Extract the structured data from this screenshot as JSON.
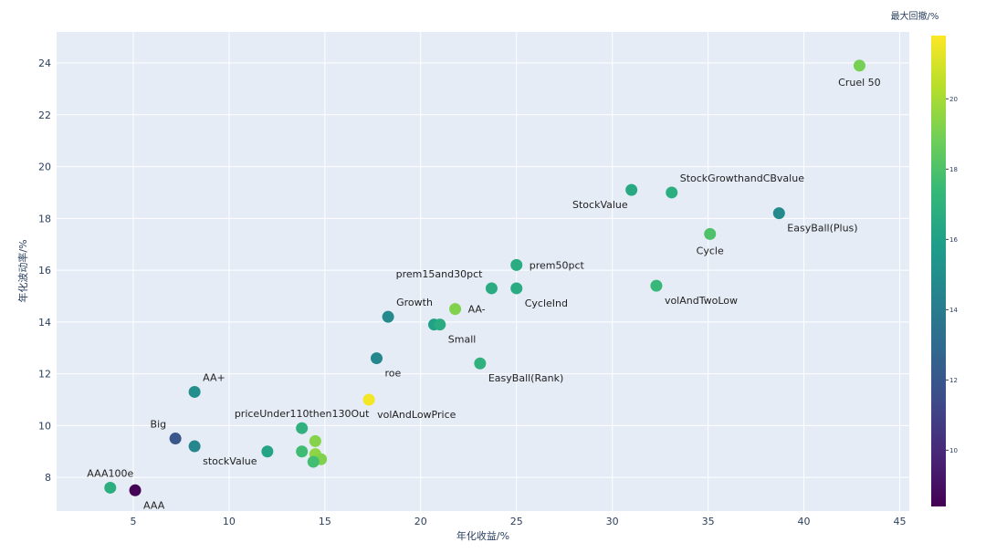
{
  "chart_data": {
    "type": "scatter",
    "title": "",
    "xlabel": "年化收益/%",
    "ylabel": "年化波动率/%",
    "colorbar_title": "最大回撤/%",
    "xlim": [
      1.0,
      45.5
    ],
    "ylim": [
      6.7,
      25.2
    ],
    "x_ticks": [
      5,
      10,
      15,
      20,
      25,
      30,
      35,
      40,
      45
    ],
    "y_ticks": [
      8,
      10,
      12,
      14,
      16,
      18,
      20,
      22,
      24
    ],
    "color_range": [
      8.4,
      21.8
    ],
    "color_ticks": [
      10,
      12,
      14,
      16,
      18,
      20
    ],
    "colorscale": "viridis",
    "grid": true,
    "plot_background": "#e5ecf6",
    "points": [
      {
        "label": "Cruel 50",
        "x": 42.9,
        "y": 23.9,
        "c": 19.0,
        "anchor": "below"
      },
      {
        "label": "StockValue",
        "x": 31.0,
        "y": 19.1,
        "c": 16.5,
        "anchor": "below-left"
      },
      {
        "label": "StockGrowthandCBvalue",
        "x": 33.1,
        "y": 19.0,
        "c": 16.8,
        "anchor": "above-right"
      },
      {
        "label": "EasyBall(Plus)",
        "x": 38.7,
        "y": 18.2,
        "c": 14.8,
        "anchor": "below-right"
      },
      {
        "label": "Cycle",
        "x": 35.1,
        "y": 17.4,
        "c": 18.0,
        "anchor": "below"
      },
      {
        "label": "prem50pct",
        "x": 25.0,
        "y": 16.2,
        "c": 16.6,
        "anchor": "right"
      },
      {
        "label": "prem15and30pct",
        "x": 23.7,
        "y": 15.3,
        "c": 16.6,
        "anchor": "above-left"
      },
      {
        "label": "CycleInd",
        "x": 25.0,
        "y": 15.3,
        "c": 16.6,
        "anchor": "below-right"
      },
      {
        "label": "volAndTwoLow",
        "x": 32.3,
        "y": 15.4,
        "c": 17.4,
        "anchor": "below-right"
      },
      {
        "label": "Growth",
        "x": 18.3,
        "y": 14.2,
        "c": 14.8,
        "anchor": "above-right"
      },
      {
        "label": "AA-",
        "x": 21.8,
        "y": 14.5,
        "c": 19.2,
        "anchor": "right"
      },
      {
        "label": "",
        "x": 20.7,
        "y": 13.9,
        "c": 16.0,
        "anchor": "none"
      },
      {
        "label": "Small",
        "x": 21.0,
        "y": 13.9,
        "c": 16.6,
        "anchor": "below-right"
      },
      {
        "label": "roe",
        "x": 17.7,
        "y": 12.6,
        "c": 14.6,
        "anchor": "below-right"
      },
      {
        "label": "EasyBall(Rank)",
        "x": 23.1,
        "y": 12.4,
        "c": 17.0,
        "anchor": "below-right"
      },
      {
        "label": "AA+",
        "x": 8.2,
        "y": 11.3,
        "c": 15.0,
        "anchor": "above-right"
      },
      {
        "label": "volAndLowPrice",
        "x": 17.3,
        "y": 11.0,
        "c": 21.6,
        "anchor": "below-right"
      },
      {
        "label": "priceUnder110then130Out",
        "x": 13.8,
        "y": 9.9,
        "c": 16.9,
        "anchor": "above"
      },
      {
        "label": "Big",
        "x": 7.2,
        "y": 9.5,
        "c": 12.0,
        "anchor": "above-left"
      },
      {
        "label": "stockValue",
        "x": 8.2,
        "y": 9.2,
        "c": 14.6,
        "anchor": "below-right"
      },
      {
        "label": "",
        "x": 12.0,
        "y": 9.0,
        "c": 16.2,
        "anchor": "none"
      },
      {
        "label": "",
        "x": 13.8,
        "y": 9.0,
        "c": 17.6,
        "anchor": "none"
      },
      {
        "label": "",
        "x": 14.5,
        "y": 9.4,
        "c": 19.3,
        "anchor": "none"
      },
      {
        "label": "",
        "x": 14.5,
        "y": 8.9,
        "c": 19.5,
        "anchor": "none"
      },
      {
        "label": "",
        "x": 14.8,
        "y": 8.7,
        "c": 19.2,
        "anchor": "none"
      },
      {
        "label": "",
        "x": 14.4,
        "y": 8.6,
        "c": 17.7,
        "anchor": "none"
      },
      {
        "label": "AAA100e",
        "x": 3.8,
        "y": 7.6,
        "c": 16.8,
        "anchor": "above"
      },
      {
        "label": "AAA",
        "x": 5.1,
        "y": 7.5,
        "c": 8.5,
        "anchor": "below-right"
      }
    ]
  }
}
